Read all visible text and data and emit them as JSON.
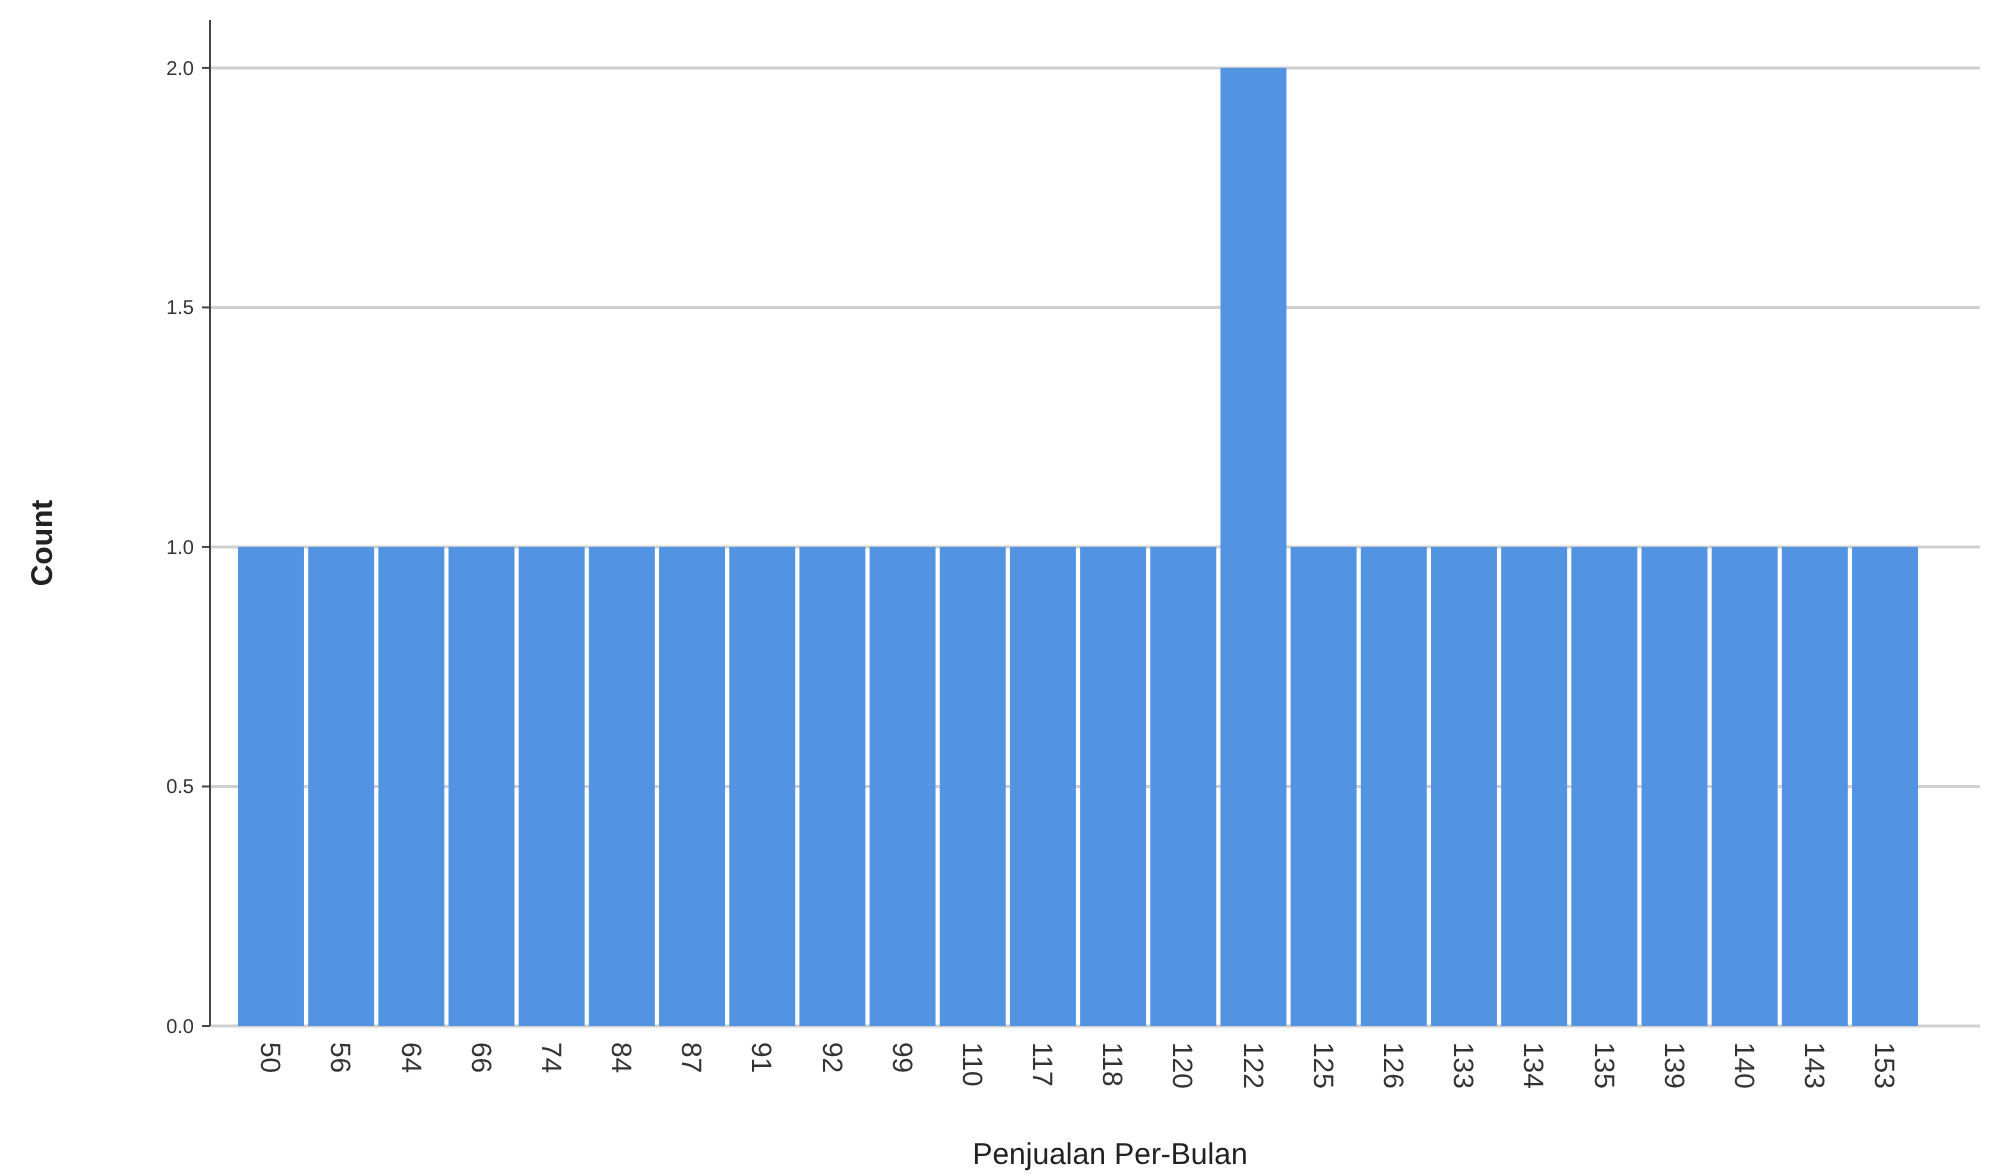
{
  "chart_data": {
    "type": "bar",
    "xlabel": "Penjualan Per-Bulan",
    "ylabel": "Count",
    "categories": [
      "50",
      "56",
      "64",
      "66",
      "74",
      "84",
      "87",
      "91",
      "92",
      "99",
      "110",
      "117",
      "118",
      "120",
      "122",
      "125",
      "126",
      "133",
      "134",
      "135",
      "139",
      "140",
      "143",
      "153"
    ],
    "values": [
      1,
      1,
      1,
      1,
      1,
      1,
      1,
      1,
      1,
      1,
      1,
      1,
      1,
      1,
      2,
      1,
      1,
      1,
      1,
      1,
      1,
      1,
      1,
      1
    ],
    "color": "#5294e2",
    "ylim": [
      0,
      2.1
    ],
    "yticks": [
      {
        "value": 0,
        "label": "0.0"
      },
      0.5,
      {
        "value": 1,
        "label": "1.0"
      },
      1.5,
      {
        "value": 2,
        "label": "2.0"
      }
    ],
    "grid": "y"
  }
}
